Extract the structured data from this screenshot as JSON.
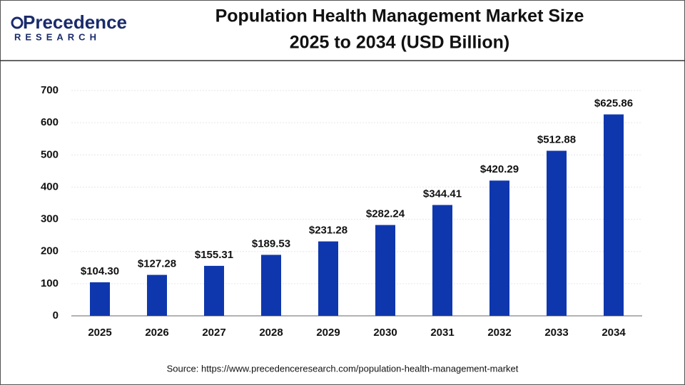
{
  "logo": {
    "name": "Precedence",
    "tagline": "RESEARCH"
  },
  "chart_data": {
    "type": "bar",
    "title": [
      "Population Health Management Market Size",
      "2025 to 2034 (USD Billion)"
    ],
    "categories": [
      "2025",
      "2026",
      "2027",
      "2028",
      "2029",
      "2030",
      "2031",
      "2032",
      "2033",
      "2034"
    ],
    "values": [
      104.3,
      127.28,
      155.31,
      189.53,
      231.28,
      282.24,
      344.41,
      420.29,
      512.88,
      625.86
    ],
    "value_labels": [
      "$104.30",
      "$127.28",
      "$155.31",
      "$189.53",
      "$231.28",
      "$282.24",
      "$344.41",
      "$420.29",
      "$512.88",
      "$625.86"
    ],
    "color": "#0f37ad",
    "ylim": [
      0,
      700
    ],
    "yticks": [
      0,
      100,
      200,
      300,
      400,
      500,
      600,
      700
    ],
    "grid": true,
    "source": "Source: https://www.precedenceresearch.com/population-health-management-market"
  }
}
